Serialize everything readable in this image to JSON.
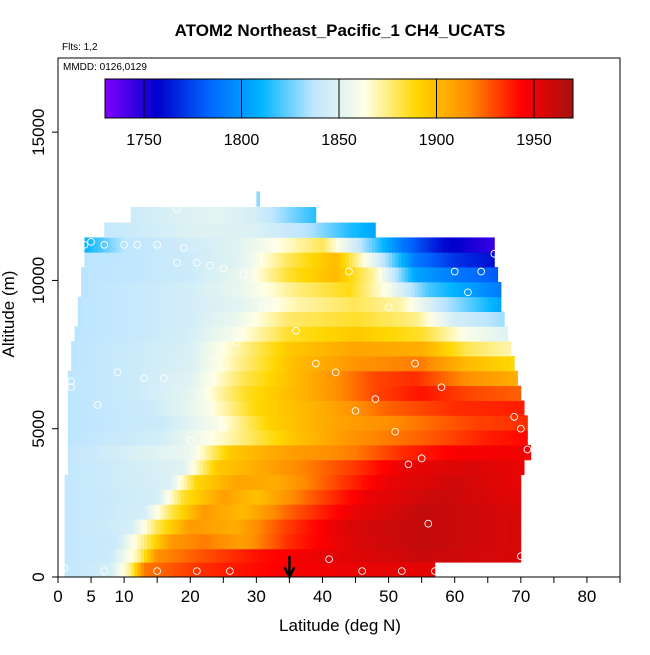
{
  "chart_data": {
    "type": "heatmap",
    "title": "ATOM2 Northeast_Pacific_1 CH4_UCATS",
    "annotations": [
      "Flts: 1,2",
      "MMDD: 0126,0129"
    ],
    "xlabel": "Latitude (deg N)",
    "ylabel": "Altitude (m)",
    "xlim": [
      0,
      85
    ],
    "ylim": [
      0,
      17500
    ],
    "x_ticks": [
      0,
      5,
      10,
      20,
      30,
      40,
      50,
      60,
      70,
      80
    ],
    "x_minor_ticks": [
      15,
      25,
      35,
      45,
      55,
      65,
      75,
      85
    ],
    "y_ticks": [
      0,
      5000,
      10000,
      15000
    ],
    "colorbar": {
      "range": [
        1730,
        1970
      ],
      "ticks": [
        1750,
        1800,
        1850,
        1900,
        1950
      ],
      "colors": [
        "#7f00ff",
        "#0000cc",
        "#0066ff",
        "#00b4ff",
        "#bfe6ff",
        "#ffffe6",
        "#ffd700",
        "#ff8c00",
        "#ff0000",
        "#a81010"
      ]
    },
    "arrow_marker_latitude": 35,
    "profiles": [
      {
        "altitude": 300,
        "lat_range": [
          1,
          57
        ],
        "values": [
          [
            1,
            1838
          ],
          [
            8,
            1845
          ],
          [
            11,
            1875
          ],
          [
            13,
            1920
          ],
          [
            16,
            1925
          ],
          [
            22,
            1935
          ],
          [
            28,
            1940
          ],
          [
            35,
            1945
          ],
          [
            45,
            1950
          ],
          [
            57,
            1952
          ]
        ]
      },
      {
        "altitude": 700,
        "lat_range": [
          1,
          70
        ],
        "values": [
          [
            1,
            1838
          ],
          [
            8,
            1842
          ],
          [
            12,
            1870
          ],
          [
            15,
            1915
          ],
          [
            22,
            1928
          ],
          [
            30,
            1940
          ],
          [
            40,
            1950
          ],
          [
            55,
            1960
          ],
          [
            70,
            1955
          ]
        ]
      },
      {
        "altitude": 1200,
        "lat_range": [
          1,
          70
        ],
        "values": [
          [
            1,
            1838
          ],
          [
            9,
            1842
          ],
          [
            13,
            1875
          ],
          [
            17,
            1912
          ],
          [
            22,
            1920
          ],
          [
            28,
            1910
          ],
          [
            35,
            1935
          ],
          [
            45,
            1955
          ],
          [
            55,
            1962
          ],
          [
            70,
            1955
          ]
        ]
      },
      {
        "altitude": 1700,
        "lat_range": [
          1,
          70
        ],
        "values": [
          [
            1,
            1838
          ],
          [
            11,
            1845
          ],
          [
            15,
            1880
          ],
          [
            20,
            1912
          ],
          [
            27,
            1905
          ],
          [
            34,
            1930
          ],
          [
            44,
            1955
          ],
          [
            55,
            1962
          ],
          [
            70,
            1955
          ]
        ]
      },
      {
        "altitude": 2200,
        "lat_range": [
          1,
          70
        ],
        "values": [
          [
            1,
            1838
          ],
          [
            13,
            1845
          ],
          [
            17,
            1880
          ],
          [
            22,
            1912
          ],
          [
            28,
            1900
          ],
          [
            35,
            1925
          ],
          [
            45,
            1950
          ],
          [
            55,
            1962
          ],
          [
            70,
            1955
          ]
        ]
      },
      {
        "altitude": 2700,
        "lat_range": [
          1,
          70
        ],
        "values": [
          [
            1,
            1838
          ],
          [
            15,
            1845
          ],
          [
            19,
            1885
          ],
          [
            25,
            1910
          ],
          [
            30,
            1898
          ],
          [
            38,
            1925
          ],
          [
            47,
            1950
          ],
          [
            58,
            1960
          ],
          [
            70,
            1952
          ]
        ]
      },
      {
        "altitude": 3200,
        "lat_range": [
          1,
          70
        ],
        "values": [
          [
            1,
            1838
          ],
          [
            17,
            1848
          ],
          [
            21,
            1890
          ],
          [
            27,
            1908
          ],
          [
            33,
            1905
          ],
          [
            42,
            1930
          ],
          [
            50,
            1950
          ],
          [
            60,
            1958
          ],
          [
            70,
            1950
          ]
        ]
      },
      {
        "altitude": 3700,
        "lat_range": [
          1.5,
          70.5
        ],
        "values": [
          [
            1.5,
            1838
          ],
          [
            19,
            1850
          ],
          [
            24,
            1895
          ],
          [
            30,
            1905
          ],
          [
            38,
            1920
          ],
          [
            46,
            1935
          ],
          [
            52,
            1950
          ],
          [
            62,
            1955
          ],
          [
            70.5,
            1950
          ]
        ]
      },
      {
        "altitude": 4200,
        "lat_range": [
          1.5,
          71.5
        ],
        "values": [
          [
            1.5,
            1838
          ],
          [
            20,
            1855
          ],
          [
            26,
            1895
          ],
          [
            35,
            1910
          ],
          [
            45,
            1920
          ],
          [
            52,
            1935
          ],
          [
            60,
            1945
          ],
          [
            71.5,
            1948
          ]
        ]
      },
      {
        "altitude": 4700,
        "lat_range": [
          1.5,
          71
        ],
        "values": [
          [
            1.5,
            1836
          ],
          [
            16,
            1845
          ],
          [
            26,
            1870
          ],
          [
            35,
            1895
          ],
          [
            45,
            1915
          ],
          [
            55,
            1925
          ],
          [
            65,
            1938
          ],
          [
            71,
            1942
          ]
        ]
      },
      {
        "altitude": 5200,
        "lat_range": [
          1.5,
          71
        ],
        "values": [
          [
            1.5,
            1836
          ],
          [
            16,
            1842
          ],
          [
            24,
            1860
          ],
          [
            32,
            1892
          ],
          [
            42,
            1908
          ],
          [
            52,
            1918
          ],
          [
            62,
            1930
          ],
          [
            71,
            1935
          ]
        ]
      },
      {
        "altitude": 5700,
        "lat_range": [
          1.5,
          70.5
        ],
        "values": [
          [
            1.5,
            1836
          ],
          [
            14,
            1842
          ],
          [
            22,
            1858
          ],
          [
            30,
            1890
          ],
          [
            40,
            1905
          ],
          [
            50,
            1925
          ],
          [
            60,
            1935
          ],
          [
            70.5,
            1938
          ]
        ]
      },
      {
        "altitude": 6200,
        "lat_range": [
          1.5,
          70
        ],
        "values": [
          [
            1.5,
            1836
          ],
          [
            12,
            1842
          ],
          [
            20,
            1852
          ],
          [
            28,
            1885
          ],
          [
            38,
            1905
          ],
          [
            48,
            1930
          ],
          [
            55,
            1940
          ],
          [
            62,
            1930
          ],
          [
            70,
            1925
          ]
        ]
      },
      {
        "altitude": 6700,
        "lat_range": [
          1.5,
          69.5
        ],
        "values": [
          [
            1.5,
            1836
          ],
          [
            12,
            1842
          ],
          [
            20,
            1850
          ],
          [
            28,
            1880
          ],
          [
            38,
            1905
          ],
          [
            48,
            1930
          ],
          [
            54,
            1935
          ],
          [
            62,
            1915
          ],
          [
            69.5,
            1905
          ]
        ]
      },
      {
        "altitude": 7200,
        "lat_range": [
          2,
          69
        ],
        "values": [
          [
            2,
            1836
          ],
          [
            12,
            1842
          ],
          [
            20,
            1848
          ],
          [
            28,
            1875
          ],
          [
            36,
            1900
          ],
          [
            46,
            1915
          ],
          [
            55,
            1920
          ],
          [
            62,
            1900
          ],
          [
            69,
            1890
          ]
        ]
      },
      {
        "altitude": 7700,
        "lat_range": [
          2,
          68.5
        ],
        "values": [
          [
            2,
            1836
          ],
          [
            12,
            1842
          ],
          [
            20,
            1847
          ],
          [
            27,
            1870
          ],
          [
            35,
            1895
          ],
          [
            45,
            1908
          ],
          [
            55,
            1905
          ],
          [
            62,
            1880
          ],
          [
            68.5,
            1870
          ]
        ]
      },
      {
        "altitude": 8200,
        "lat_range": [
          2.5,
          68
        ],
        "values": [
          [
            2.5,
            1836
          ],
          [
            12,
            1840
          ],
          [
            20,
            1846
          ],
          [
            27,
            1860
          ],
          [
            35,
            1885
          ],
          [
            45,
            1895
          ],
          [
            55,
            1885
          ],
          [
            62,
            1860
          ],
          [
            68,
            1850
          ]
        ]
      },
      {
        "altitude": 8700,
        "lat_range": [
          3,
          67.5
        ],
        "values": [
          [
            3,
            1836
          ],
          [
            12,
            1840
          ],
          [
            20,
            1845
          ],
          [
            27,
            1855
          ],
          [
            35,
            1878
          ],
          [
            45,
            1885
          ],
          [
            54,
            1875
          ],
          [
            60,
            1845
          ],
          [
            67.5,
            1832
          ]
        ]
      },
      {
        "altitude": 9200,
        "lat_range": [
          3,
          67
        ],
        "values": [
          [
            3,
            1836
          ],
          [
            12,
            1840
          ],
          [
            20,
            1845
          ],
          [
            28,
            1852
          ],
          [
            36,
            1870
          ],
          [
            45,
            1880
          ],
          [
            52,
            1870
          ],
          [
            58,
            1838
          ],
          [
            67,
            1805
          ]
        ]
      },
      {
        "altitude": 9700,
        "lat_range": [
          3.5,
          67
        ],
        "values": [
          [
            3.5,
            1836
          ],
          [
            12,
            1840
          ],
          [
            20,
            1845
          ],
          [
            28,
            1855
          ],
          [
            36,
            1875
          ],
          [
            44,
            1888
          ],
          [
            50,
            1860
          ],
          [
            56,
            1820
          ],
          [
            67,
            1790
          ]
        ]
      },
      {
        "altitude": 10200,
        "lat_range": [
          3.5,
          66.5
        ],
        "values": [
          [
            3.5,
            1836
          ],
          [
            12,
            1838
          ],
          [
            20,
            1842
          ],
          [
            28,
            1855
          ],
          [
            35,
            1885
          ],
          [
            42,
            1900
          ],
          [
            48,
            1870
          ],
          [
            54,
            1805
          ],
          [
            60,
            1790
          ],
          [
            66.5,
            1780
          ]
        ]
      },
      {
        "altitude": 10700,
        "lat_range": [
          4,
          66
        ],
        "values": [
          [
            4,
            1836
          ],
          [
            12,
            1838
          ],
          [
            20,
            1842
          ],
          [
            28,
            1852
          ],
          [
            35,
            1880
          ],
          [
            42,
            1900
          ],
          [
            48,
            1850
          ],
          [
            54,
            1790
          ],
          [
            60,
            1770
          ],
          [
            66,
            1760
          ]
        ]
      },
      {
        "altitude": 11200,
        "lat_range": [
          4,
          66
        ],
        "values": [
          [
            4,
            1810
          ],
          [
            10,
            1836
          ],
          [
            18,
            1842
          ],
          [
            27,
            1850
          ],
          [
            34,
            1865
          ],
          [
            40,
            1880
          ],
          [
            46,
            1835
          ],
          [
            52,
            1790
          ],
          [
            58,
            1760
          ],
          [
            66,
            1745
          ]
        ]
      },
      {
        "altitude": 11700,
        "lat_range": [
          7,
          48
        ],
        "values": [
          [
            7,
            1838
          ],
          [
            15,
            1845
          ],
          [
            22,
            1850
          ],
          [
            30,
            1848
          ],
          [
            38,
            1835
          ],
          [
            44,
            1815
          ],
          [
            48,
            1805
          ]
        ]
      },
      {
        "altitude": 12200,
        "lat_range": [
          11,
          39
        ],
        "values": [
          [
            11,
            1842
          ],
          [
            18,
            1848
          ],
          [
            24,
            1852
          ],
          [
            30,
            1845
          ],
          [
            35,
            1828
          ],
          [
            39,
            1815
          ]
        ]
      },
      {
        "altitude": 12750,
        "lat_range": [
          30,
          30.5
        ],
        "values": [
          [
            30,
            1830
          ],
          [
            30.5,
            1830
          ]
        ]
      }
    ],
    "sample_points": [
      [
        1,
        300
      ],
      [
        7,
        200
      ],
      [
        15,
        200
      ],
      [
        21,
        200
      ],
      [
        26,
        200
      ],
      [
        41,
        600
      ],
      [
        46,
        200
      ],
      [
        52,
        200
      ],
      [
        57,
        200
      ],
      [
        70,
        700
      ],
      [
        56,
        1800
      ],
      [
        53,
        3800
      ],
      [
        55,
        4000
      ],
      [
        71,
        4300
      ],
      [
        70,
        5000
      ],
      [
        69,
        5400
      ],
      [
        20,
        4600
      ],
      [
        25,
        5000
      ],
      [
        51,
        4900
      ],
      [
        6,
        5800
      ],
      [
        45,
        5600
      ],
      [
        48,
        6000
      ],
      [
        58,
        6400
      ],
      [
        2,
        6400
      ],
      [
        2,
        6600
      ],
      [
        9,
        6900
      ],
      [
        13,
        6700
      ],
      [
        16,
        6700
      ],
      [
        42,
        6900
      ],
      [
        39,
        7200
      ],
      [
        54,
        7200
      ],
      [
        27,
        7900
      ],
      [
        36,
        8300
      ],
      [
        31,
        9100
      ],
      [
        50,
        9100
      ],
      [
        62,
        9600
      ],
      [
        18,
        10600
      ],
      [
        21,
        10600
      ],
      [
        23,
        10500
      ],
      [
        25,
        10400
      ],
      [
        28,
        10200
      ],
      [
        44,
        10300
      ],
      [
        60,
        10300
      ],
      [
        64,
        10300
      ],
      [
        4,
        11200
      ],
      [
        5,
        11300
      ],
      [
        7,
        11200
      ],
      [
        10,
        11200
      ],
      [
        12,
        11200
      ],
      [
        15,
        11200
      ],
      [
        19,
        11100
      ],
      [
        66,
        10900
      ],
      [
        18,
        12400
      ]
    ]
  }
}
